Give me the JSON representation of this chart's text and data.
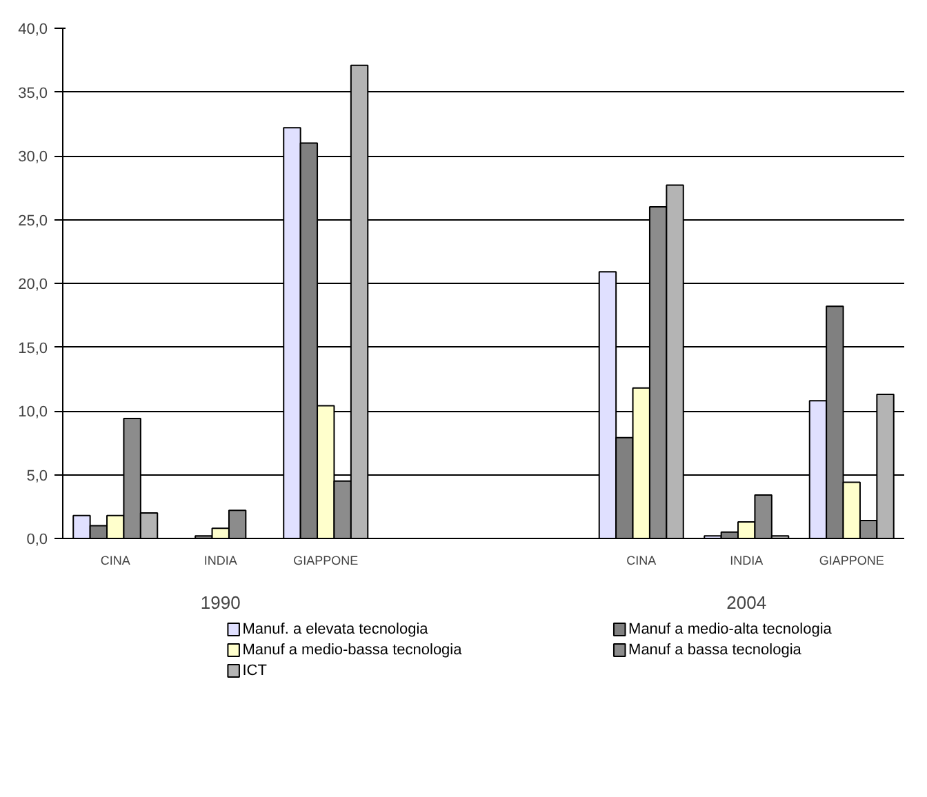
{
  "chart_data": {
    "type": "bar",
    "categories": [
      "CINA",
      "INDIA",
      "GIAPPONE",
      null,
      null,
      "CINA",
      "INDIA",
      "GIAPPONE"
    ],
    "annotations": [
      "1990",
      "2004"
    ],
    "series": [
      {
        "name": "Manuf. a elevata tecnologia",
        "color": "#e0e0ff",
        "values": [
          1.8,
          null,
          32.2,
          null,
          null,
          20.9,
          0.2,
          10.8
        ]
      },
      {
        "name": "Manuf a medio-alta tecnologia",
        "color": "#808080",
        "values": [
          1.0,
          0.2,
          31.0,
          null,
          null,
          7.9,
          0.5,
          18.2
        ]
      },
      {
        "name": "Manuf a medio-bassa tecnologia",
        "color": "#ffffcc",
        "values": [
          1.8,
          0.8,
          10.4,
          null,
          null,
          11.8,
          1.3,
          4.4
        ]
      },
      {
        "name": "Manuf a bassa tecnologia",
        "color": "#8c8c8c",
        "values": [
          9.4,
          2.2,
          4.5,
          null,
          null,
          26.0,
          3.4,
          1.4
        ]
      },
      {
        "name": "ICT",
        "color": "#b4b4b4",
        "values": [
          2.0,
          null,
          37.1,
          null,
          null,
          27.7,
          0.2,
          11.3
        ]
      }
    ],
    "ylim": [
      0,
      40
    ],
    "yticks": [
      {
        "value": 0,
        "label": "0,0"
      },
      {
        "value": 5,
        "label": "5,0"
      },
      {
        "value": 10,
        "label": "10,0"
      },
      {
        "value": 15,
        "label": "15,0"
      },
      {
        "value": 20,
        "label": "20,0"
      },
      {
        "value": 25,
        "label": "25,0"
      },
      {
        "value": 30,
        "label": "30,0"
      },
      {
        "value": 35,
        "label": "35,0"
      },
      {
        "value": 40,
        "label": "40,0"
      }
    ],
    "grid": "y",
    "legend": "bottom"
  }
}
